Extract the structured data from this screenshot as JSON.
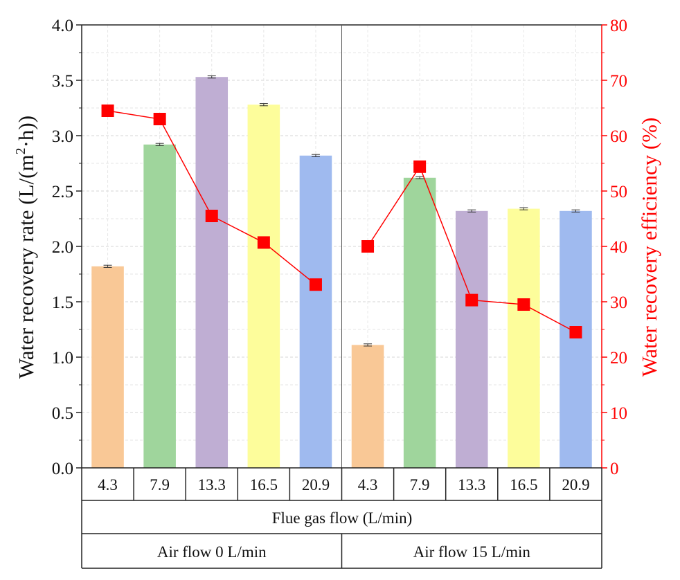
{
  "chart_data": {
    "type": "bar",
    "categories": [
      "4.3",
      "7.9",
      "13.3",
      "16.5",
      "20.9"
    ],
    "groups": [
      {
        "label": "Air flow 0 L/min",
        "rate": [
          1.82,
          2.92,
          3.53,
          3.28,
          2.82
        ],
        "rate_error": [
          0.01,
          0.01,
          0.01,
          0.01,
          0.01
        ],
        "efficiency": [
          64.5,
          63.0,
          45.5,
          40.7,
          33.1
        ]
      },
      {
        "label": "Air flow 15 L/min",
        "rate": [
          1.11,
          2.62,
          2.32,
          2.34,
          2.32
        ],
        "rate_error": [
          0.01,
          0.01,
          0.01,
          0.01,
          0.01
        ],
        "efficiency": [
          40.0,
          54.4,
          30.3,
          29.5,
          24.5
        ]
      }
    ],
    "series": [
      {
        "name": "Water recovery rate",
        "axis": "left",
        "type": "bar"
      },
      {
        "name": "Water recovery efficiency",
        "axis": "right",
        "type": "line",
        "color": "#ff0000"
      }
    ],
    "bar_colors": [
      "#f9c896",
      "#9fd59c",
      "#bfaed3",
      "#fdfd9b",
      "#9fbaef"
    ],
    "ylabel_left": "Water recovery rate (L/(m²·h))",
    "ylabel_left_parts": [
      "Water recovery rate (L/(m",
      "2",
      "·h))"
    ],
    "ylabel_right": "Water recovery efficiency (%)",
    "ylim_left": [
      0,
      4.0
    ],
    "ylim_right": [
      0,
      80
    ],
    "yticks_left": [
      "0.0",
      "0.5",
      "1.0",
      "1.5",
      "2.0",
      "2.5",
      "3.0",
      "3.5",
      "4.0"
    ],
    "yticks_right": [
      "0",
      "10",
      "20",
      "30",
      "40",
      "50",
      "60",
      "70",
      "80"
    ],
    "xlabel": "Flue gas flow (L/min)",
    "grid": true
  }
}
